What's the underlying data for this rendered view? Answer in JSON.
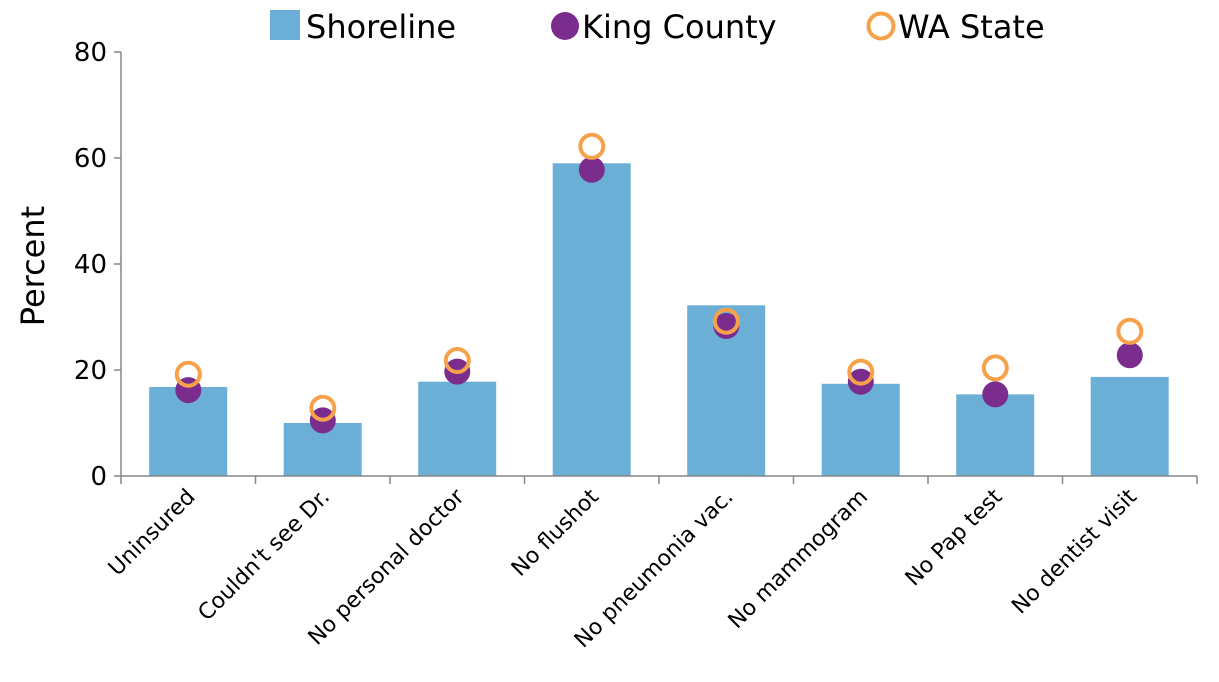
{
  "chart_data": {
    "type": "bar",
    "title": "",
    "xlabel": "",
    "ylabel": "Percent",
    "ylim": [
      0,
      80
    ],
    "yticks": [
      0,
      20,
      40,
      60,
      80
    ],
    "grid": false,
    "legend_position": "top",
    "categories": [
      "Uninsured",
      "Couldn't see Dr.",
      "No personal doctor",
      "No flushot",
      "No pneumonia vac.",
      "No mammogram",
      "No Pap test",
      "No dentist visit"
    ],
    "series": [
      {
        "name": "Shoreline",
        "kind": "bar",
        "color": "#6baed6",
        "values": [
          16.8,
          10.0,
          17.8,
          59.0,
          32.2,
          17.4,
          15.4,
          18.7
        ]
      },
      {
        "name": "King County",
        "kind": "filled-circle",
        "color": "#7b2d8e",
        "values": [
          16.2,
          10.5,
          19.7,
          57.8,
          28.3,
          17.8,
          15.4,
          22.8
        ]
      },
      {
        "name": "WA State",
        "kind": "hollow-circle",
        "color": "#f7a24a",
        "values": [
          19.2,
          12.8,
          21.8,
          62.2,
          29.2,
          19.6,
          20.4,
          27.3
        ]
      }
    ]
  }
}
